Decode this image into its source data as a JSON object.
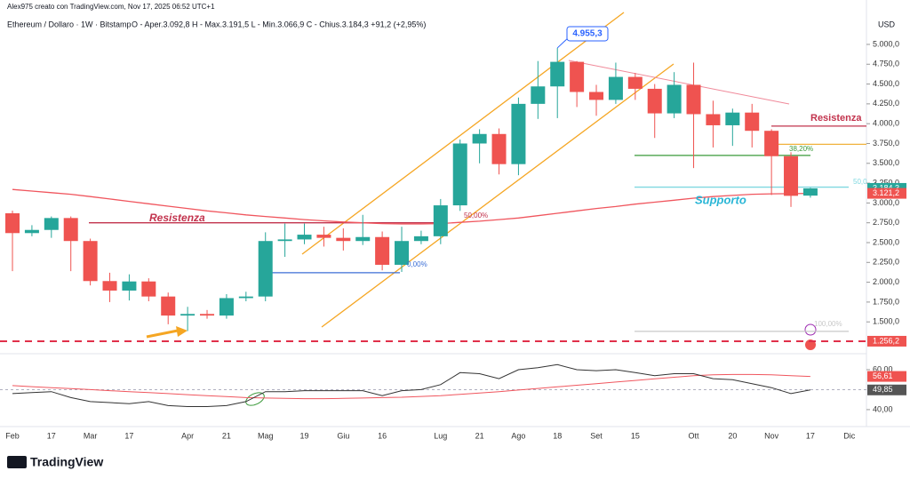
{
  "chart_data": {
    "type": "candlestick",
    "header": "Alex975 creato con TradingView.com, Nov 17, 2025 06:52 UTC+1",
    "title": "Ethereum / Dollaro · 1W · Bitstamp",
    "ohlc_text": "O - Aper.3.092,8   H - Max.3.191,5   L - Min.3.066,9   C - Chius.3.184,3   +91,2 (+2,95%)",
    "currency": "USD",
    "brand": "TradingView",
    "categories": [
      "Feb",
      null,
      "17",
      null,
      "Mar",
      null,
      "17",
      null,
      null,
      "Apr",
      null,
      "21",
      null,
      "Mag",
      null,
      "19",
      null,
      "Giu",
      null,
      "16",
      null,
      null,
      "Lug",
      null,
      "21",
      null,
      "Ago",
      null,
      "18",
      null,
      "Set",
      null,
      "15",
      null,
      null,
      "Ott",
      null,
      "20",
      null,
      "Nov",
      null,
      "17",
      null,
      "Dic"
    ],
    "open": [
      2870,
      2620,
      2660,
      2810,
      2520,
      2015,
      1895,
      2010,
      1820,
      1580,
      1600,
      1580,
      1800,
      1820,
      2520,
      2540,
      2600,
      2560,
      2520,
      2570,
      2220,
      2520,
      2580,
      2970,
      3750,
      3870,
      3490,
      4250,
      4470,
      4780,
      4400,
      4300,
      4590,
      4440,
      4130,
      4490,
      4120,
      3980,
      4140,
      3910,
      3590,
      3092.8,
      null,
      null
    ],
    "high": [
      2903,
      2720,
      2830,
      2830,
      2550,
      2120,
      2100,
      2050,
      1870,
      1690,
      1650,
      1850,
      1880,
      2630,
      2740,
      2740,
      2700,
      2680,
      2850,
      2640,
      2700,
      2650,
      3050,
      3800,
      3930,
      3940,
      4330,
      4790,
      4955.3,
      4790,
      4490,
      4770,
      4640,
      4500,
      4650,
      4770,
      4290,
      4190,
      4250,
      3930,
      3640,
      3191.5,
      null,
      null
    ],
    "low": [
      2140,
      2580,
      2560,
      2140,
      1960,
      1750,
      1770,
      1760,
      1470,
      1385,
      1540,
      1540,
      1760,
      1760,
      2320,
      2480,
      2450,
      2400,
      2470,
      2150,
      2130,
      2480,
      2480,
      2900,
      3500,
      3360,
      3350,
      4060,
      4070,
      4210,
      4100,
      4250,
      4300,
      3820,
      4070,
      3440,
      3700,
      3720,
      3700,
      3100,
      2950,
      3066.9,
      null,
      null
    ],
    "close": [
      2620,
      2660,
      2810,
      2520,
      2015,
      1895,
      2010,
      1820,
      1580,
      1600,
      1580,
      1800,
      1820,
      2520,
      2540,
      2600,
      2560,
      2520,
      2570,
      2220,
      2520,
      2580,
      2970,
      3750,
      3870,
      3490,
      4250,
      4470,
      4780,
      4400,
      4300,
      4590,
      4440,
      4130,
      4490,
      4120,
      3980,
      4140,
      3910,
      3590,
      3090,
      3184.3,
      null,
      null
    ],
    "up_color": "#26a69a",
    "down_color": "#ef5350",
    "ma": {
      "color": "#f0565e",
      "values": [
        3170,
        3150,
        3130,
        3110,
        3080,
        3050,
        3020,
        2990,
        2960,
        2930,
        2900,
        2875,
        2850,
        2830,
        2810,
        2790,
        2775,
        2760,
        2750,
        2740,
        2735,
        2735,
        2740,
        2755,
        2770,
        2790,
        2810,
        2840,
        2870,
        2900,
        2930,
        2955,
        2985,
        3010,
        3035,
        3060,
        3080,
        3095,
        3110,
        3115,
        3118,
        3121.2,
        null,
        null
      ]
    },
    "rsi": {
      "color": "#333333",
      "values": [
        48,
        48.5,
        49,
        46,
        44,
        43.5,
        43,
        44,
        42,
        41.5,
        41.5,
        42,
        44,
        49,
        49,
        49.5,
        49.5,
        49.5,
        49.5,
        47,
        49.5,
        50,
        52.5,
        58.5,
        58,
        55.5,
        60,
        61,
        62.5,
        60,
        59.5,
        60,
        58.5,
        57,
        58,
        58,
        55.5,
        55,
        53,
        51,
        48,
        49.85,
        null,
        null
      ]
    },
    "rsi_ma": {
      "color": "#f0565e",
      "values": [
        52,
        51.5,
        51,
        50.5,
        50,
        49.5,
        49,
        48.5,
        48,
        47.5,
        47,
        46.5,
        46,
        45.8,
        45.6,
        45.5,
        45.5,
        45.6,
        45.8,
        46,
        46.2,
        46.6,
        47,
        47.6,
        48.3,
        49,
        49.8,
        50.6,
        51.4,
        52.2,
        53,
        53.8,
        54.6,
        55.4,
        56.2,
        57,
        57.4,
        57.6,
        57.6,
        57.4,
        57,
        56.61,
        null,
        null
      ]
    },
    "ylim": [
      1110,
      5560
    ],
    "yticks": [
      {
        "value": 5000,
        "label": "5.000,0"
      },
      {
        "value": 4750,
        "label": "4.750,0"
      },
      {
        "value": 4500,
        "label": "4.500,0"
      },
      {
        "value": 4250,
        "label": "4.250,0"
      },
      {
        "value": 4000,
        "label": "4.000,0"
      },
      {
        "value": 3750,
        "label": "3.750,0"
      },
      {
        "value": 3500,
        "label": "3.500,0"
      },
      {
        "value": 3250,
        "label": "3.250,0"
      },
      {
        "value": 3000,
        "label": "3.000,0"
      },
      {
        "value": 2750,
        "label": "2.750,0"
      },
      {
        "value": 2500,
        "label": "2.500,0"
      },
      {
        "value": 2250,
        "label": "2.250,0"
      },
      {
        "value": 2000,
        "label": "2.000,0"
      },
      {
        "value": 1750,
        "label": "1.750,0"
      },
      {
        "value": 1500,
        "label": "1.500,0"
      }
    ],
    "rsi_ylim": [
      32.4,
      67.1
    ],
    "rsi_yticks": [
      {
        "value": 60,
        "label": "60,00"
      },
      {
        "value": 40,
        "label": "40,00"
      }
    ],
    "levels": [
      {
        "value": 2750,
        "color": "#c2334d"
      },
      {
        "value": 2120,
        "color": "#3c6fd6"
      },
      {
        "value": 3970,
        "color": "#c2334d"
      },
      {
        "value": 3740,
        "color": "#f0b23c"
      },
      {
        "value": 3600,
        "color": "#3a9a3a"
      },
      {
        "value": 3200,
        "color": "#7fd8e0"
      },
      {
        "value": 1380,
        "color": "#c8c8c8"
      },
      {
        "value": 1256.2,
        "color": "#e0304a"
      }
    ],
    "annotations": [
      "Resistenza",
      "50,00%",
      "0,00%",
      "Resistenza",
      "38,20%",
      "Supporto",
      "50,0",
      "100,00%"
    ],
    "callout": {
      "value": 4955.3,
      "label": "4.955,3"
    },
    "badges": [
      {
        "value": 3184.3,
        "label": "3.184,3",
        "color": "#26a69a"
      },
      {
        "value": 3121.2,
        "label": "3.121,2",
        "color": "#ef5350"
      },
      {
        "value": 1256.2,
        "label": "1.256,2",
        "color": "#ef5350"
      }
    ],
    "rsi_badges": [
      {
        "value": 56.61,
        "label": "56,61",
        "color": "#ef5350"
      },
      {
        "value": 49.85,
        "label": "49,85",
        "color": "#555555"
      }
    ]
  }
}
